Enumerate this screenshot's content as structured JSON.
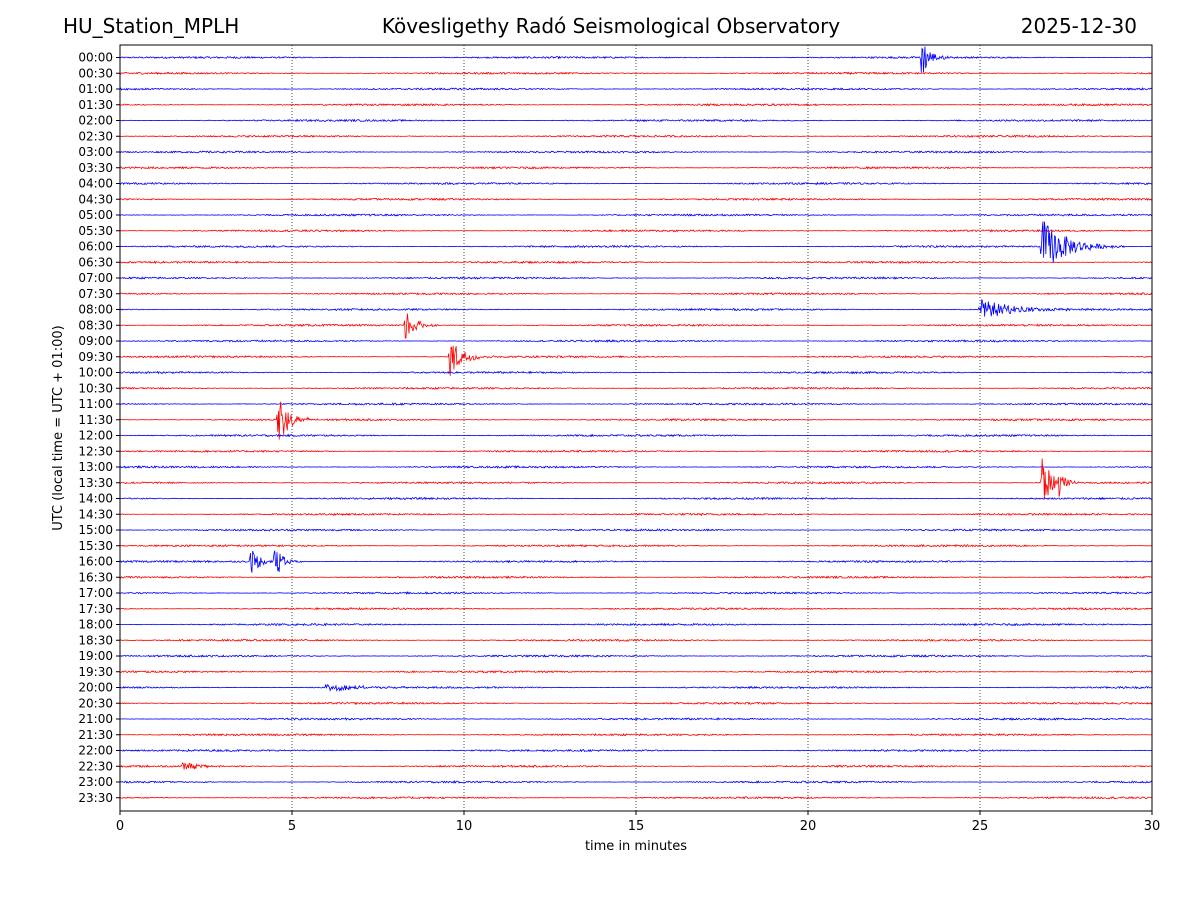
{
  "header": {
    "station": "HU_Station_MPLH",
    "observatory": "Kövesligethy Radó Seismological Observatory",
    "date": "2025-12-30"
  },
  "chart_data": {
    "type": "line",
    "subtype": "helicorder",
    "xlabel": "time in minutes",
    "ylabel": "UTC (local time = UTC + 01:00)",
    "xlim": [
      0,
      30
    ],
    "xticks": [
      0,
      5,
      10,
      15,
      20,
      25,
      30
    ],
    "x_gridlines": [
      5,
      10,
      15,
      20,
      25
    ],
    "grid": "vertical dotted",
    "row_labels": [
      "00:00",
      "00:30",
      "01:00",
      "01:30",
      "02:00",
      "02:30",
      "03:00",
      "03:30",
      "04:00",
      "04:30",
      "05:00",
      "05:30",
      "06:00",
      "06:30",
      "07:00",
      "07:30",
      "08:00",
      "08:30",
      "09:00",
      "09:30",
      "10:00",
      "10:30",
      "11:00",
      "11:30",
      "12:00",
      "12:30",
      "13:00",
      "13:30",
      "14:00",
      "14:30",
      "15:00",
      "15:30",
      "16:00",
      "16:30",
      "17:00",
      "17:30",
      "18:00",
      "18:30",
      "19:00",
      "19:30",
      "20:00",
      "20:30",
      "21:00",
      "21:30",
      "22:00",
      "22:30",
      "23:00",
      "23:30"
    ],
    "trace_colors": [
      "#0000ff",
      "#ff0000"
    ],
    "noise_amplitude": 0.06,
    "events": [
      {
        "row": "00:00",
        "minute": 23.3,
        "amplitude": 1.4,
        "duration": 0.5
      },
      {
        "row": "06:00",
        "minute": 26.8,
        "amplitude": 1.8,
        "duration": 1.5
      },
      {
        "row": "08:00",
        "minute": 25.0,
        "amplitude": 0.7,
        "duration": 2.0
      },
      {
        "row": "08:30",
        "minute": 8.3,
        "amplitude": 1.2,
        "duration": 0.6
      },
      {
        "row": "09:30",
        "minute": 9.6,
        "amplitude": 1.3,
        "duration": 0.8
      },
      {
        "row": "11:30",
        "minute": 4.6,
        "amplitude": 2.0,
        "duration": 0.6
      },
      {
        "row": "13:30",
        "minute": 26.8,
        "amplitude": 2.0,
        "duration": 0.5
      },
      {
        "row": "13:30",
        "minute": 27.3,
        "amplitude": 0.9,
        "duration": 0.4
      },
      {
        "row": "16:00",
        "minute": 3.8,
        "amplitude": 0.9,
        "duration": 0.6
      },
      {
        "row": "16:00",
        "minute": 4.5,
        "amplitude": 1.1,
        "duration": 0.5
      },
      {
        "row": "20:00",
        "minute": 6.0,
        "amplitude": 0.35,
        "duration": 1.5
      },
      {
        "row": "22:30",
        "minute": 1.8,
        "amplitude": 0.3,
        "duration": 1.0
      }
    ]
  }
}
